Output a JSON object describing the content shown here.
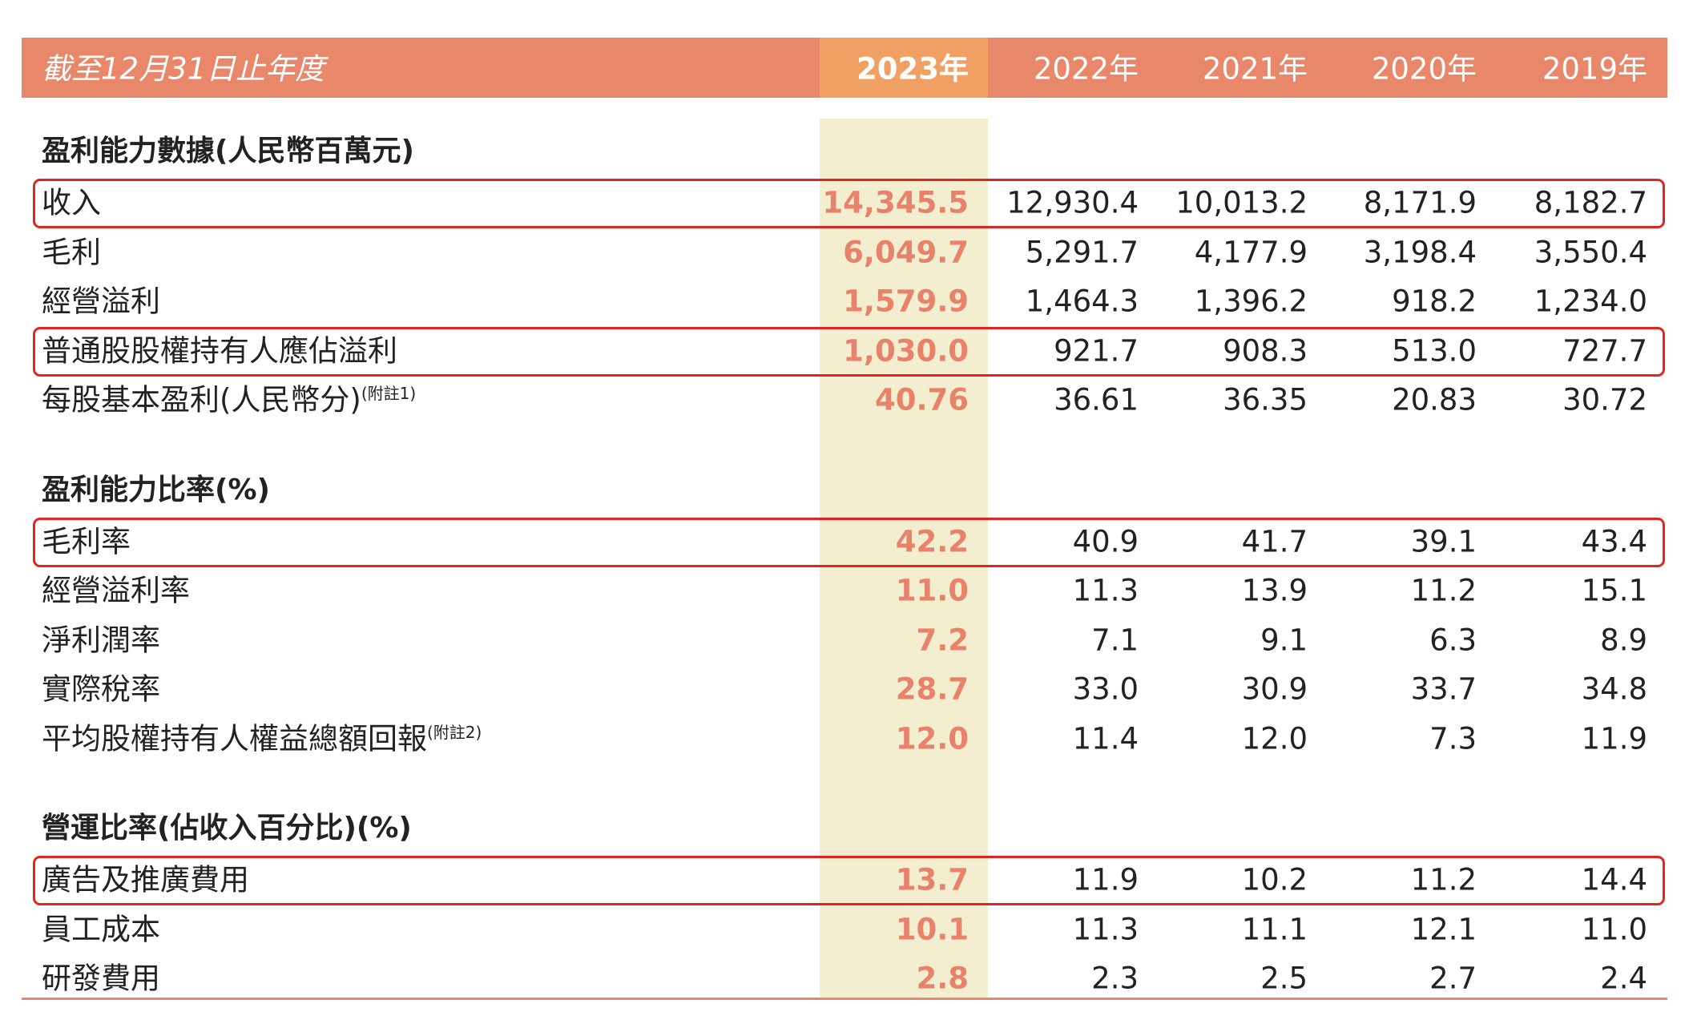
{
  "header": {
    "label": "截至12月31日止年度",
    "years": [
      "2023年",
      "2022年",
      "2021年",
      "2020年",
      "2019年"
    ]
  },
  "sections": [
    {
      "title": "盈利能力數據(人民幣百萬元)",
      "rows": [
        {
          "label": "收入",
          "highlighted": true,
          "values": [
            "14,345.5",
            "12,930.4",
            "10,013.2",
            "8,171.9",
            "8,182.7"
          ]
        },
        {
          "label": "毛利",
          "values": [
            "6,049.7",
            "5,291.7",
            "4,177.9",
            "3,198.4",
            "3,550.4"
          ]
        },
        {
          "label": "經營溢利",
          "values": [
            "1,579.9",
            "1,464.3",
            "1,396.2",
            "918.2",
            "1,234.0"
          ]
        },
        {
          "label": "普通股股權持有人應佔溢利",
          "highlighted": true,
          "values": [
            "1,030.0",
            "921.7",
            "908.3",
            "513.0",
            "727.7"
          ]
        },
        {
          "label": "每股基本盈利(人民幣分)",
          "note": "(附註1)",
          "values": [
            "40.76",
            "36.61",
            "36.35",
            "20.83",
            "30.72"
          ]
        }
      ]
    },
    {
      "title": "盈利能力比率(%)",
      "rows": [
        {
          "label": "毛利率",
          "highlighted": true,
          "values": [
            "42.2",
            "40.9",
            "41.7",
            "39.1",
            "43.4"
          ]
        },
        {
          "label": "經營溢利率",
          "values": [
            "11.0",
            "11.3",
            "13.9",
            "11.2",
            "15.1"
          ]
        },
        {
          "label": "淨利潤率",
          "values": [
            "7.2",
            "7.1",
            "9.1",
            "6.3",
            "8.9"
          ]
        },
        {
          "label": "實際稅率",
          "values": [
            "28.7",
            "33.0",
            "30.9",
            "33.7",
            "34.8"
          ]
        },
        {
          "label": "平均股權持有人權益總額回報",
          "note": "(附註2)",
          "values": [
            "12.0",
            "11.4",
            "12.0",
            "7.3",
            "11.9"
          ]
        }
      ]
    },
    {
      "title": "營運比率(佔收入百分比)(%)",
      "rows": [
        {
          "label": "廣告及推廣費用",
          "highlighted": true,
          "values": [
            "13.7",
            "11.9",
            "10.2",
            "11.2",
            "14.4"
          ]
        },
        {
          "label": "員工成本",
          "values": [
            "10.1",
            "11.3",
            "11.1",
            "12.1",
            "11.0"
          ]
        },
        {
          "label": "研發費用",
          "values": [
            "2.8",
            "2.3",
            "2.5",
            "2.7",
            "2.4"
          ]
        }
      ]
    }
  ]
}
